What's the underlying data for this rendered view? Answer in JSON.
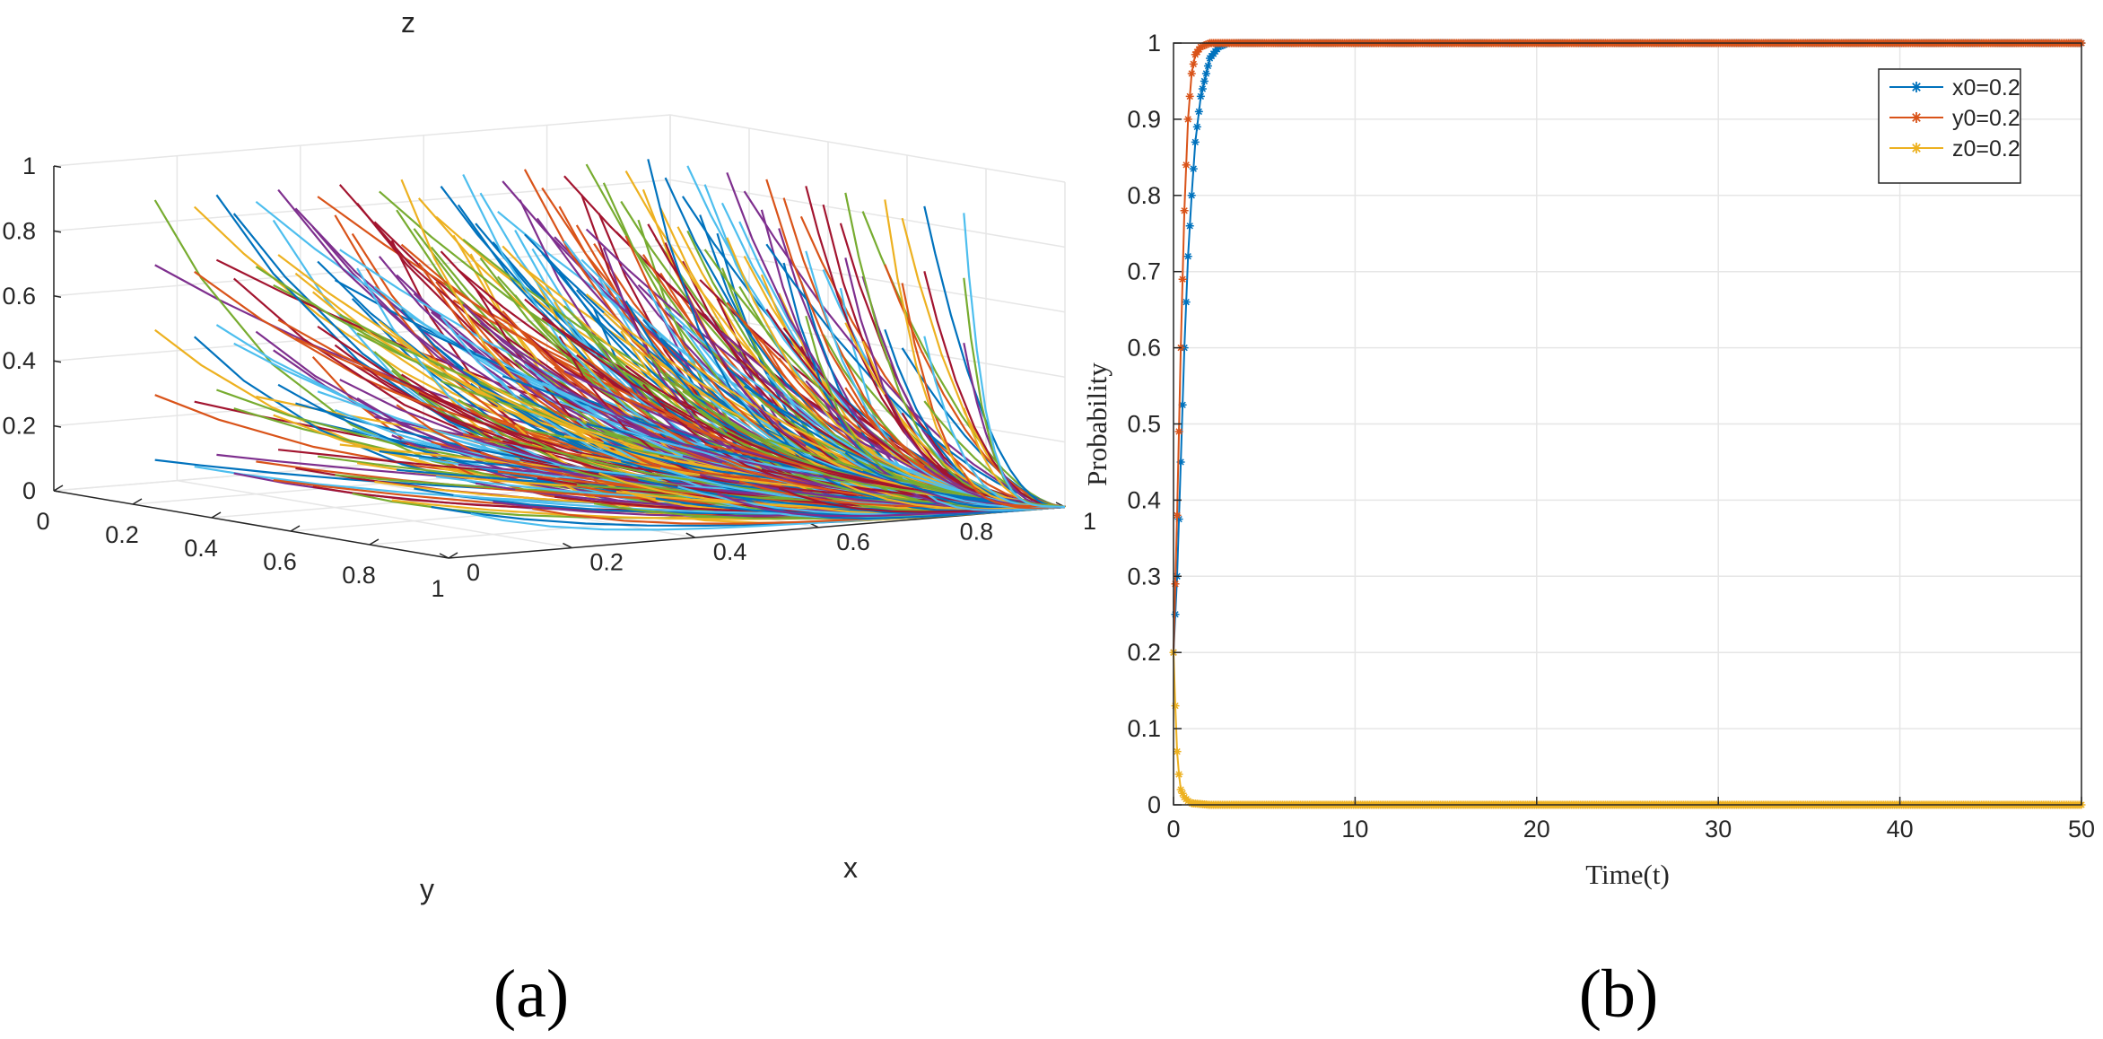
{
  "figure": {
    "panels": [
      {
        "label": "(a)"
      },
      {
        "label": "(b)"
      }
    ]
  },
  "colors": {
    "series_palette": [
      "#0072BD",
      "#D95319",
      "#EDB120",
      "#7E2F8E",
      "#77AC30",
      "#4DBEEE",
      "#A2142F"
    ],
    "grid": "#e6e6e6",
    "axis": "#262626"
  },
  "chart_data": [
    {
      "id": "a",
      "type": "line",
      "projection": "3d",
      "title": "",
      "xlabel": "x",
      "ylabel": "y",
      "zlabel": "z",
      "xlim": [
        0,
        1
      ],
      "ylim": [
        0,
        1
      ],
      "zlim": [
        0,
        1
      ],
      "x_ticks": [
        "0",
        "0.2",
        "0.4",
        "0.6",
        "0.8",
        "1"
      ],
      "y_ticks": [
        "0",
        "0.2",
        "0.4",
        "0.6",
        "0.8",
        "1"
      ],
      "z_ticks": [
        "0",
        "0.2",
        "0.4",
        "0.6",
        "0.8",
        "1"
      ],
      "grid": true,
      "converges_to": {
        "x": 1,
        "y": 1,
        "z": 0
      },
      "initial_values": [
        0.1,
        0.2,
        0.3,
        0.4,
        0.5,
        0.6,
        0.7,
        0.8,
        0.9
      ],
      "note": "trajectories from initial points on a 9x9x9 grid; colors cycle through the series palette"
    },
    {
      "id": "b",
      "type": "line",
      "title": "",
      "xlabel": "Time(t)",
      "ylabel": "Probability",
      "xlim": [
        0,
        50
      ],
      "ylim": [
        0,
        1
      ],
      "x_ticks": [
        "0",
        "10",
        "20",
        "30",
        "40",
        "50"
      ],
      "y_ticks": [
        "0",
        "0.1",
        "0.2",
        "0.3",
        "0.4",
        "0.5",
        "0.6",
        "0.7",
        "0.8",
        "0.9",
        "1"
      ],
      "grid": true,
      "legend": "top-right",
      "series": [
        {
          "name": "x0=0.2",
          "color": "#0072BD",
          "marker": "*",
          "x": [
            0,
            0.2,
            0.4,
            0.6,
            0.8,
            1.0,
            1.2,
            1.5,
            2.0,
            2.5,
            3,
            5,
            10,
            20,
            30,
            40,
            50
          ],
          "values": [
            0.2,
            0.3,
            0.45,
            0.6,
            0.72,
            0.8,
            0.87,
            0.93,
            0.98,
            0.995,
            1,
            1,
            1,
            1,
            1,
            1,
            1
          ]
        },
        {
          "name": "y0=0.2",
          "color": "#D95319",
          "marker": "*",
          "x": [
            0,
            0.2,
            0.4,
            0.6,
            0.8,
            1.0,
            1.2,
            1.5,
            2.0,
            2.5,
            3,
            5,
            10,
            20,
            30,
            40,
            50
          ],
          "values": [
            0.2,
            0.38,
            0.6,
            0.78,
            0.9,
            0.96,
            0.985,
            0.995,
            1,
            1,
            1,
            1,
            1,
            1,
            1,
            1,
            1
          ]
        },
        {
          "name": "z0=0.2",
          "color": "#EDB120",
          "marker": "*",
          "x": [
            0,
            0.1,
            0.2,
            0.3,
            0.4,
            0.6,
            0.8,
            1.0,
            1.5,
            2,
            3,
            5,
            10,
            20,
            30,
            40,
            50
          ],
          "values": [
            0.2,
            0.13,
            0.07,
            0.04,
            0.02,
            0.01,
            0.005,
            0.002,
            0.001,
            0,
            0,
            0,
            0,
            0,
            0,
            0,
            0
          ]
        }
      ]
    }
  ]
}
